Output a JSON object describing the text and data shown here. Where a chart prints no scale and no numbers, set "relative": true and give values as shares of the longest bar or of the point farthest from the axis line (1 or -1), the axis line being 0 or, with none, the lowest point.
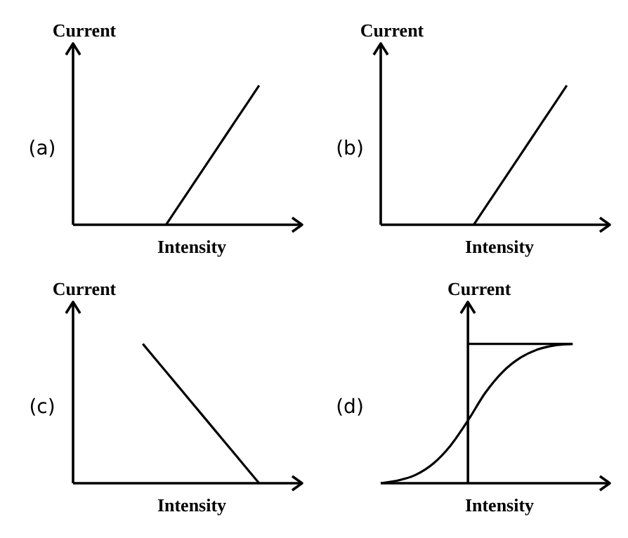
{
  "chart_data": [
    {
      "type": "line",
      "relative": true,
      "xlabel": "Intensity",
      "ylabel": "Current",
      "annotations": [
        "(a)"
      ],
      "categories": [
        null,
        null,
        null,
        null,
        null,
        null,
        null,
        null,
        null,
        null
      ],
      "series": [
        {
          "color": "#000000",
          "values": [
            null,
            null,
            null,
            null,
            0,
            0.25,
            0.5,
            0.75,
            1,
            null
          ]
        }
      ]
    },
    {
      "type": "line",
      "relative": true,
      "xlabel": "Intensity",
      "ylabel": "Current",
      "annotations": [
        "(b)"
      ],
      "categories": [
        null,
        null,
        null,
        null,
        null,
        null,
        null,
        null,
        null,
        null
      ],
      "series": [
        {
          "color": "#000000",
          "values": [
            null,
            null,
            null,
            null,
            0,
            0.25,
            0.5,
            0.75,
            1,
            null
          ]
        }
      ]
    },
    {
      "type": "line",
      "relative": true,
      "xlabel": "Intensity",
      "ylabel": "Current",
      "annotations": [
        "(c)"
      ],
      "categories": [
        null,
        null,
        null,
        null,
        null,
        null,
        null,
        null,
        null,
        null
      ],
      "series": [
        {
          "color": "#000000",
          "values": [
            null,
            null,
            null,
            1,
            0.8,
            0.6,
            0.4,
            0.2,
            0,
            null
          ]
        }
      ]
    },
    {
      "type": "line",
      "relative": true,
      "xlabel": "Intensity",
      "ylabel": "Current",
      "annotations": [
        "(d)"
      ],
      "categories": [
        null,
        null,
        null,
        null,
        null,
        null,
        null,
        null,
        null,
        null,
        null,
        null,
        null
      ],
      "series": [
        {
          "color": "#000000",
          "values": [
            null,
            null,
            null,
            null,
            null,
            1,
            1,
            1,
            1,
            1,
            1,
            1,
            null
          ]
        },
        {
          "color": "#000000",
          "values": [
            0,
            0.02,
            0.06,
            0.14,
            0.27,
            0.45,
            0.65,
            0.8,
            0.9,
            0.96,
            0.99,
            1,
            null
          ]
        }
      ]
    }
  ]
}
